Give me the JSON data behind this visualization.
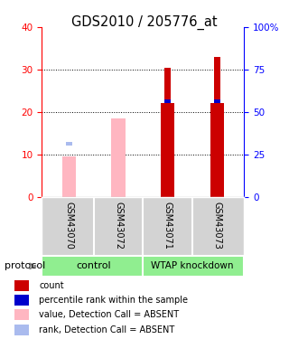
{
  "title": "GDS2010 / 205776_at",
  "samples": [
    "GSM43070",
    "GSM43072",
    "GSM43071",
    "GSM43073"
  ],
  "bar_positions": [
    0,
    1,
    2,
    3
  ],
  "value_bars": [
    9.5,
    18.5,
    22.0,
    22.0
  ],
  "value_bar_colors": [
    "#FFB6C1",
    "#FFB6C1",
    "#CC0000",
    "#CC0000"
  ],
  "rank_bars": [
    12.5,
    0,
    22.5,
    22.5
  ],
  "rank_bar_colors": [
    "#AABBEE",
    "#AABBEE",
    "#0000CC",
    "#0000CC"
  ],
  "count_bars": [
    0,
    0,
    30.5,
    33.0
  ],
  "ylim_left": [
    0,
    40
  ],
  "ylim_right": [
    0,
    100
  ],
  "yticks_left": [
    0,
    10,
    20,
    30,
    40
  ],
  "yticks_right": [
    0,
    25,
    50,
    75,
    100
  ],
  "ytick_labels_right": [
    "0",
    "25",
    "50",
    "75",
    "100%"
  ],
  "legend_items": [
    {
      "label": "count",
      "color": "#CC0000"
    },
    {
      "label": "percentile rank within the sample",
      "color": "#0000CC"
    },
    {
      "label": "value, Detection Call = ABSENT",
      "color": "#FFB6C1"
    },
    {
      "label": "rank, Detection Call = ABSENT",
      "color": "#AABBEE"
    }
  ],
  "group_label_left": "control",
  "group_label_right": "WTAP knockdown",
  "group_color": "#90EE90",
  "sample_box_color": "#D3D3D3",
  "value_bar_width": 0.28,
  "rank_bar_width": 0.13,
  "count_bar_width": 0.13
}
